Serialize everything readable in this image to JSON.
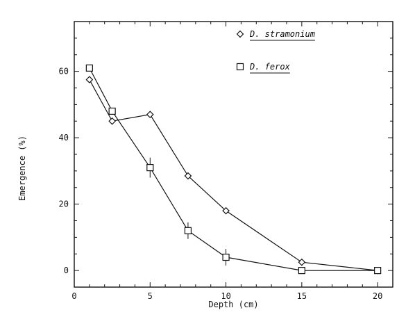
{
  "chart_data": {
    "type": "line",
    "title": "",
    "xlabel": "Depth (cm)",
    "ylabel": "Emergence (%)",
    "xlim": [
      0,
      21
    ],
    "ylim": [
      -5,
      75
    ],
    "x_ticks": [
      0,
      5,
      10,
      15,
      20
    ],
    "x_tick_labels": [
      "0",
      "5",
      "10",
      "15",
      "20"
    ],
    "y_ticks": [
      0,
      20,
      40,
      60
    ],
    "y_tick_labels": [
      "0",
      "20",
      "40",
      "60"
    ],
    "grid": false,
    "legend_position": "top-right",
    "series": [
      {
        "name": "D. stramonium",
        "marker": "diamond",
        "x": [
          1,
          2.5,
          5,
          7.5,
          10,
          15,
          20
        ],
        "values": [
          57.5,
          45,
          47,
          28.5,
          18,
          2.5,
          0
        ],
        "errors": [
          0,
          0,
          0,
          0,
          0,
          0,
          0
        ]
      },
      {
        "name": "D. ferox",
        "marker": "square",
        "x": [
          1,
          2.5,
          5,
          7.5,
          10,
          15,
          20
        ],
        "values": [
          61,
          48,
          31,
          12,
          4,
          0,
          0
        ],
        "errors": [
          0,
          0,
          3,
          2.5,
          2.5,
          0,
          0
        ]
      }
    ]
  }
}
